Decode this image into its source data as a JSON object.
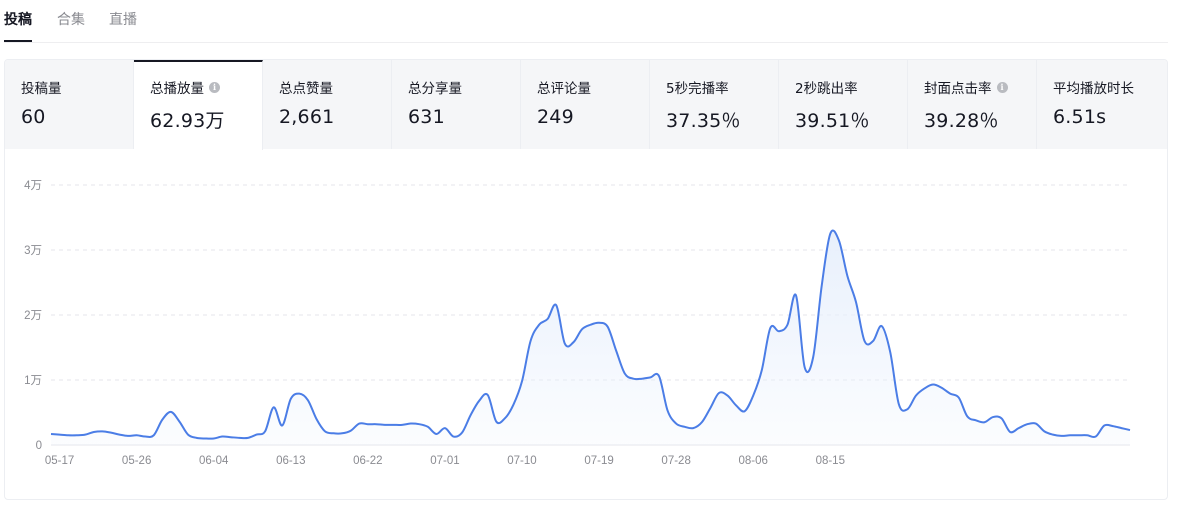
{
  "tabs": [
    {
      "label": "投稿",
      "active": true
    },
    {
      "label": "合集",
      "active": false
    },
    {
      "label": "直播",
      "active": false
    }
  ],
  "metrics": [
    {
      "label": "投稿量",
      "value": "60",
      "info": false,
      "active": false
    },
    {
      "label": "总播放量",
      "value": "62.93万",
      "info": true,
      "active": true
    },
    {
      "label": "总点赞量",
      "value": "2,661",
      "info": false,
      "active": false
    },
    {
      "label": "总分享量",
      "value": "631",
      "info": false,
      "active": false
    },
    {
      "label": "总评论量",
      "value": "249",
      "info": false,
      "active": false
    },
    {
      "label": "5秒完播率",
      "value": "37.35％",
      "info": false,
      "active": false
    },
    {
      "label": "2秒跳出率",
      "value": "39.51％",
      "info": false,
      "active": false
    },
    {
      "label": "封面点击率",
      "value": "39.28％",
      "info": true,
      "active": false
    },
    {
      "label": "平均播放时长",
      "value": "6.51s",
      "info": false,
      "active": false
    }
  ],
  "colors": {
    "line": "#4b7de6",
    "area": "#e8f0fc",
    "grid": "#e5e6eb"
  },
  "chart_data": {
    "type": "area",
    "x_start": "05-16",
    "x_ticks": [
      "05-17",
      "05-26",
      "06-04",
      "06-13",
      "06-22",
      "07-01",
      "07-10",
      "07-19",
      "07-28",
      "08-06",
      "08-15"
    ],
    "y_ticks": [
      "0",
      "1万",
      "2万",
      "3万",
      "4万"
    ],
    "ylim": [
      0,
      40000
    ],
    "grid": true,
    "series": [
      {
        "name": "",
        "values": [
          1700,
          1600,
          1500,
          1500,
          1600,
          2000,
          2100,
          1900,
          1600,
          1400,
          1500,
          1300,
          1500,
          3900,
          5100,
          3600,
          1600,
          1100,
          1000,
          1000,
          1300,
          1200,
          1100,
          1100,
          1600,
          2100,
          5800,
          3000,
          7100,
          7900,
          6900,
          4000,
          2100,
          1800,
          1800,
          2200,
          3300,
          3200,
          3200,
          3100,
          3100,
          3100,
          3300,
          3200,
          2800,
          1700,
          2600,
          1300,
          1900,
          4600,
          6800,
          7700,
          3600,
          4100,
          6200,
          9800,
          16000,
          18500,
          19400,
          21500,
          15600,
          15800,
          17800,
          18500,
          18800,
          18200,
          14500,
          11000,
          10200,
          10200,
          10400,
          10600,
          5300,
          3300,
          2800,
          2600,
          3500,
          5700,
          8000,
          7600,
          6100,
          5200,
          7600,
          11500,
          18000,
          17500,
          18500,
          23000,
          12000,
          13500,
          24500,
          32500,
          31500,
          26000,
          22000,
          16000,
          16000,
          18300,
          14300,
          6300,
          5500,
          7600,
          8700,
          9300,
          8800,
          7900,
          7300,
          4400,
          3800,
          3500,
          4300,
          4100,
          2000,
          2600,
          3200,
          3300,
          2100,
          1600,
          1400,
          1500,
          1500,
          1500,
          1300,
          3000,
          2900,
          2600,
          2300
        ]
      }
    ]
  }
}
